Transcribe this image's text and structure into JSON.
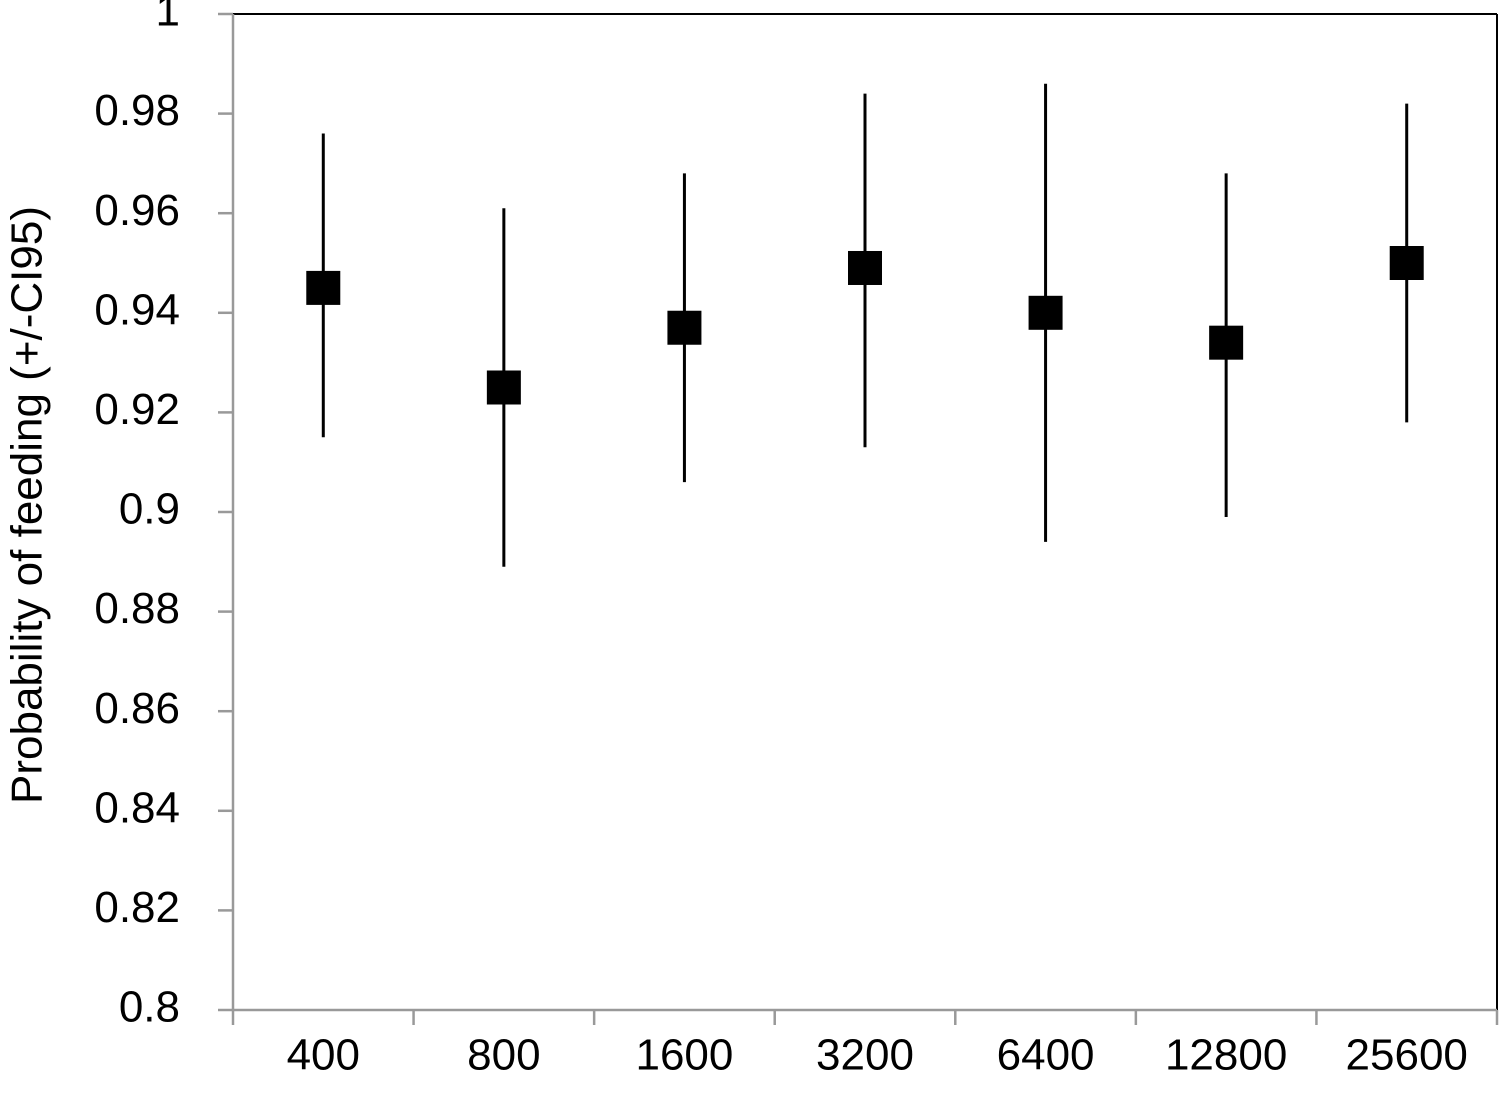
{
  "chart_data": {
    "type": "errorbar",
    "y_label": "Probability of feeding (+/-CI95)",
    "categories": [
      "400",
      "800",
      "1600",
      "3200",
      "6400",
      "12800",
      "25600"
    ],
    "series": [
      {
        "color": "#000000",
        "values": [
          0.945,
          0.925,
          0.937,
          0.949,
          0.94,
          0.934,
          0.95
        ],
        "lower": [
          0.915,
          0.889,
          0.906,
          0.913,
          0.894,
          0.899,
          0.918
        ],
        "upper": [
          0.976,
          0.961,
          0.968,
          0.984,
          0.986,
          0.968,
          0.982
        ]
      }
    ],
    "ylim": [
      0.8,
      1
    ],
    "yticks": [
      0.8,
      0.82,
      0.84,
      0.86,
      0.88,
      0.9,
      0.92,
      0.94,
      0.96,
      0.98,
      1
    ],
    "grid": false
  }
}
